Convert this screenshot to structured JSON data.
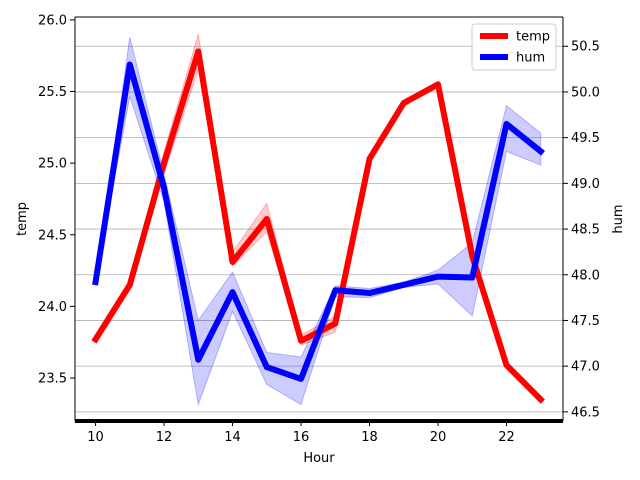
{
  "chart_data": {
    "type": "line",
    "xlabel": "Hour",
    "ylabel_left": "temp",
    "ylabel_right": "hum",
    "x": [
      10,
      11,
      12,
      13,
      14,
      15,
      16,
      17,
      18,
      19,
      20,
      21,
      22,
      23
    ],
    "xlim": [
      9.4,
      23.65
    ],
    "ylim_left": [
      23.2,
      26.02
    ],
    "ylim_right": [
      46.4,
      50.82
    ],
    "xticks": [
      10,
      12,
      14,
      16,
      18,
      20,
      22
    ],
    "yticks_left": [
      "23.5",
      "24.0",
      "24.5",
      "25.0",
      "25.5",
      "26.0"
    ],
    "yticks_right": [
      "46.5",
      "47.0",
      "47.5",
      "48.0",
      "48.5",
      "49.0",
      "49.5",
      "50.0",
      "50.5"
    ],
    "grid": "horizontal",
    "legend": "top-right",
    "series": [
      {
        "name": "temp",
        "axis": "left",
        "color": "#ff0000",
        "values": [
          23.77,
          24.15,
          25.0,
          25.78,
          24.31,
          24.61,
          23.76,
          23.88,
          25.03,
          25.42,
          25.55,
          24.35,
          23.59,
          23.35
        ],
        "lower": [
          23.77,
          24.13,
          24.93,
          25.65,
          24.28,
          24.52,
          23.73,
          23.82,
          25.0,
          25.4,
          25.53,
          24.33,
          23.57,
          23.34
        ],
        "upper": [
          23.78,
          24.18,
          25.08,
          25.9,
          24.38,
          24.72,
          23.8,
          23.93,
          25.06,
          25.44,
          25.57,
          24.38,
          23.61,
          23.36
        ]
      },
      {
        "name": "hum",
        "axis": "right",
        "color": "#0000ff",
        "values": [
          47.92,
          50.3,
          48.95,
          47.07,
          47.81,
          46.99,
          46.86,
          47.83,
          47.8,
          47.89,
          47.98,
          47.97,
          49.65,
          49.35
        ],
        "lower": [
          47.92,
          49.95,
          48.8,
          46.58,
          47.6,
          46.8,
          46.58,
          47.76,
          47.75,
          47.86,
          47.9,
          47.55,
          49.35,
          49.2
        ],
        "upper": [
          47.92,
          50.6,
          49.1,
          47.5,
          48.03,
          47.15,
          47.1,
          47.88,
          47.85,
          47.92,
          48.05,
          48.35,
          49.85,
          49.55
        ]
      }
    ]
  }
}
